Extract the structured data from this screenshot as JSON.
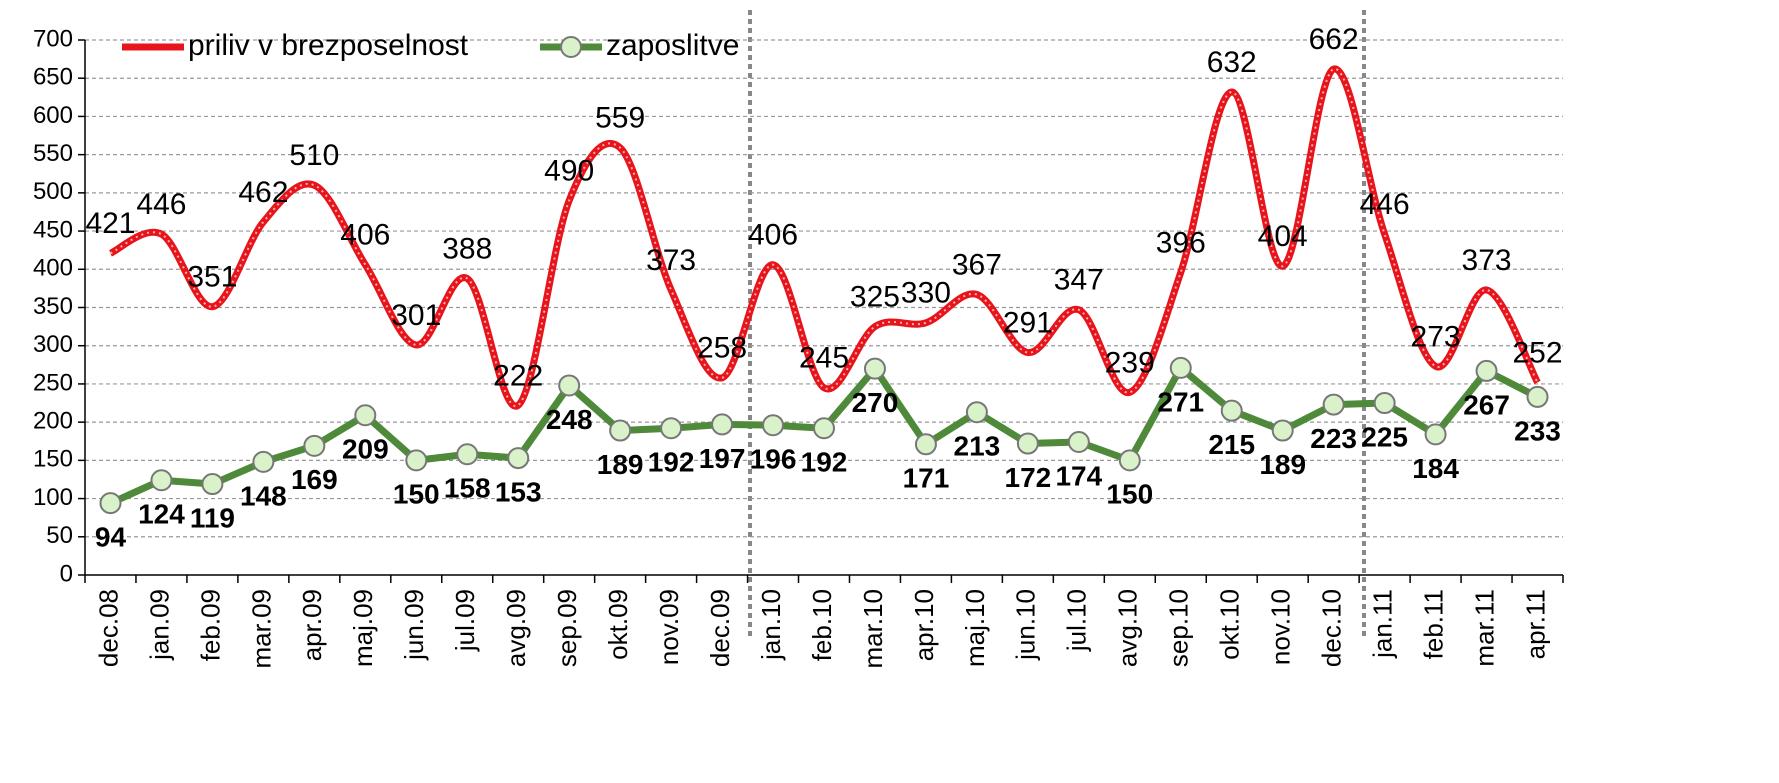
{
  "chart_data": {
    "type": "line",
    "categories": [
      "dec.08",
      "jan.09",
      "feb.09",
      "mar.09",
      "apr.09",
      "maj.09",
      "jun.09",
      "jul.09",
      "avg.09",
      "sep.09",
      "okt.09",
      "nov.09",
      "dec.09",
      "jan.10",
      "feb.10",
      "mar.10",
      "apr.10",
      "maj.10",
      "jun.10",
      "jul.10",
      "avg.10",
      "sep.10",
      "okt.10",
      "nov.10",
      "dec.10",
      "jan.11",
      "feb.11",
      "mar.11",
      "apr.11"
    ],
    "series": [
      {
        "name": "priliv v brezposelnost",
        "color": "#e8141b",
        "smooth": true,
        "markers": false,
        "values": [
          421,
          446,
          351,
          462,
          510,
          406,
          301,
          388,
          222,
          490,
          559,
          373,
          258,
          406,
          245,
          325,
          330,
          367,
          291,
          347,
          239,
          396,
          632,
          404,
          662,
          446,
          273,
          373,
          252
        ]
      },
      {
        "name": "zaposlitve",
        "color": "#4f8a3a",
        "smooth": false,
        "markers": true,
        "values": [
          94,
          124,
          119,
          148,
          169,
          209,
          150,
          158,
          153,
          248,
          189,
          192,
          197,
          196,
          192,
          270,
          171,
          213,
          172,
          174,
          150,
          271,
          215,
          189,
          223,
          225,
          184,
          267,
          233
        ]
      }
    ],
    "ylim": [
      0,
      700
    ],
    "yticks": [
      0,
      50,
      100,
      150,
      200,
      250,
      300,
      350,
      400,
      450,
      500,
      550,
      600,
      650,
      700
    ],
    "grid": true
  }
}
